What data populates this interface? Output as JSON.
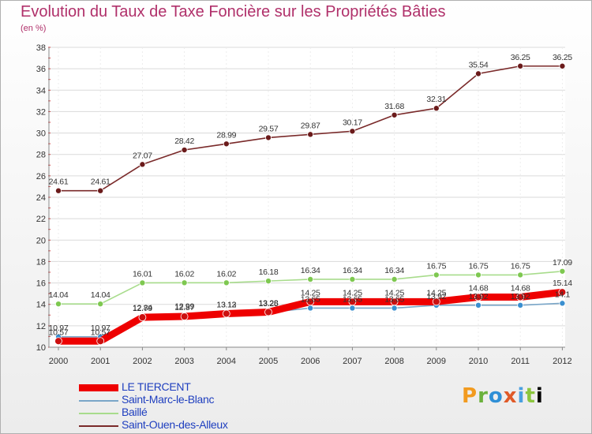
{
  "title": "Evolution du Taux de Taxe Foncière sur les Propriétés Bâties",
  "unit": "(en %)",
  "brand": "Proxiti",
  "chart_data": {
    "type": "line",
    "title": "Evolution du Taux de Taxe Foncière sur les Propriétés Bâties",
    "ylabel": "(en %)",
    "xlabel": "",
    "ylim": [
      10,
      38
    ],
    "yticks": [
      10,
      12,
      14,
      16,
      18,
      20,
      22,
      24,
      26,
      28,
      30,
      32,
      34,
      36,
      38
    ],
    "categories": [
      "2000",
      "2001",
      "2002",
      "2003",
      "2004",
      "2005",
      "2006",
      "2007",
      "2008",
      "2009",
      "2010",
      "2011",
      "2012"
    ],
    "legend_position": "bottom-left",
    "series": [
      {
        "name": "Saint-Ouen-des-Alleux",
        "color": "#7a2a2a",
        "dot_color": "#6b1b1b",
        "values": [
          24.61,
          24.61,
          27.07,
          28.42,
          28.99,
          29.57,
          29.87,
          30.17,
          31.68,
          32.31,
          35.54,
          36.25,
          36.25
        ],
        "labels": [
          "24.61",
          "24.61",
          "27.07",
          "28.42",
          "28.99",
          "29.57",
          "29.87",
          "30.17",
          "31.68",
          "32.31",
          "35.54",
          "36.25",
          "36.25"
        ]
      },
      {
        "name": "Baillé",
        "color": "#a8dc8c",
        "dot_color": "#7ec850",
        "values": [
          14.04,
          14.04,
          16.01,
          16.02,
          16.02,
          16.18,
          16.34,
          16.34,
          16.34,
          16.75,
          16.75,
          16.75,
          17.09
        ],
        "labels": [
          "14.04",
          "14.04",
          "16.01",
          "16.02",
          "16.02",
          "16.18",
          "16.34",
          "16.34",
          "16.34",
          "16.75",
          "16.75",
          "16.75",
          "17.09"
        ]
      },
      {
        "name": "Saint-Marc-le-Blanc",
        "color": "#7aa6c8",
        "dot_color": "#3a8fd0",
        "values": [
          10.97,
          10.97,
          12.84,
          12.99,
          13.12,
          13.25,
          13.65,
          13.65,
          13.65,
          13.92,
          13.92,
          13.92,
          14.1
        ],
        "labels": [
          "10.97",
          "10.97",
          "12.84",
          "12.99",
          "13.12",
          "13.25",
          "13.65",
          "13.65",
          "13.65",
          "13.92",
          "13.92",
          "13.92",
          "14.1"
        ]
      },
      {
        "name": "LE TIERCENT",
        "color": "#ee0000",
        "dot_color": "#cc1010",
        "values": [
          10.57,
          10.57,
          12.79,
          12.87,
          13.13,
          13.28,
          14.25,
          14.25,
          14.25,
          14.25,
          14.68,
          14.68,
          15.14
        ],
        "labels": [
          "10.57",
          "10.57",
          "12.79",
          "12.87",
          "13.13",
          "13.28",
          "14.25",
          "14.25",
          "14.25",
          "14.25",
          "14.68",
          "14.68",
          "15.14"
        ]
      }
    ]
  },
  "legend": [
    {
      "name": "LE TIERCENT",
      "color": "#ee0000",
      "weight": "thick"
    },
    {
      "name": "Saint-Marc-le-Blanc",
      "color": "#7aa6c8",
      "weight": "thin"
    },
    {
      "name": "Baillé",
      "color": "#a8dc8c",
      "weight": "thin"
    },
    {
      "name": "Saint-Ouen-des-Alleux",
      "color": "#7a2a2a",
      "weight": "thin"
    }
  ]
}
